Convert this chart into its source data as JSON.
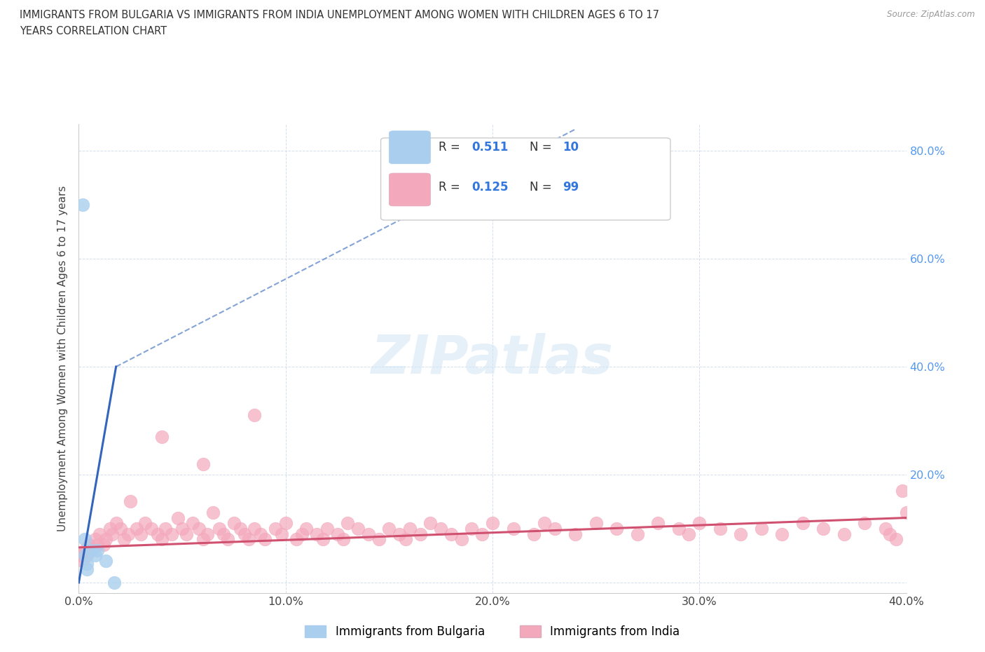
{
  "title_line1": "IMMIGRANTS FROM BULGARIA VS IMMIGRANTS FROM INDIA UNEMPLOYMENT AMONG WOMEN WITH CHILDREN AGES 6 TO 17",
  "title_line2": "YEARS CORRELATION CHART",
  "source": "Source: ZipAtlas.com",
  "ylabel": "Unemployment Among Women with Children Ages 6 to 17 years",
  "xlim": [
    0.0,
    0.4
  ],
  "ylim": [
    -0.02,
    0.85
  ],
  "x_ticks": [
    0.0,
    0.1,
    0.2,
    0.3,
    0.4
  ],
  "x_tick_labels": [
    "0.0%",
    "10.0%",
    "20.0%",
    "30.0%",
    "40.0%"
  ],
  "y_ticks": [
    0.0,
    0.2,
    0.4,
    0.6,
    0.8
  ],
  "y_tick_labels_right": [
    "",
    "20.0%",
    "40.0%",
    "60.0%",
    "80.0%"
  ],
  "watermark": "ZIPatlas",
  "legend_r_bulgaria": "0.511",
  "legend_n_bulgaria": "10",
  "legend_r_india": "0.125",
  "legend_n_india": "99",
  "color_bulgaria": "#aacfee",
  "color_india": "#f4a8bc",
  "trendline_bulgaria_color": "#3366bb",
  "trendline_india_color": "#d05070",
  "background_color": "#ffffff",
  "bulgaria_x": [
    0.002,
    0.003,
    0.003,
    0.004,
    0.004,
    0.006,
    0.008,
    0.009,
    0.013,
    0.017
  ],
  "bulgaria_y": [
    0.7,
    0.08,
    0.05,
    0.035,
    0.025,
    0.06,
    0.05,
    0.06,
    0.04,
    0.0
  ],
  "india_x": [
    0.001,
    0.002,
    0.003,
    0.004,
    0.005,
    0.006,
    0.008,
    0.009,
    0.01,
    0.012,
    0.013,
    0.015,
    0.016,
    0.018,
    0.02,
    0.022,
    0.024,
    0.025,
    0.028,
    0.03,
    0.032,
    0.035,
    0.038,
    0.04,
    0.042,
    0.045,
    0.048,
    0.05,
    0.052,
    0.055,
    0.058,
    0.06,
    0.062,
    0.065,
    0.068,
    0.07,
    0.072,
    0.075,
    0.078,
    0.08,
    0.082,
    0.085,
    0.088,
    0.09,
    0.095,
    0.098,
    0.1,
    0.105,
    0.108,
    0.11,
    0.115,
    0.118,
    0.12,
    0.125,
    0.128,
    0.13,
    0.135,
    0.14,
    0.145,
    0.15,
    0.155,
    0.158,
    0.16,
    0.165,
    0.17,
    0.175,
    0.18,
    0.185,
    0.19,
    0.195,
    0.2,
    0.21,
    0.22,
    0.225,
    0.23,
    0.24,
    0.25,
    0.26,
    0.27,
    0.28,
    0.29,
    0.295,
    0.3,
    0.31,
    0.32,
    0.33,
    0.34,
    0.35,
    0.36,
    0.37,
    0.38,
    0.39,
    0.392,
    0.395,
    0.398,
    0.4,
    0.085,
    0.06,
    0.04
  ],
  "india_y": [
    0.05,
    0.04,
    0.06,
    0.05,
    0.07,
    0.06,
    0.08,
    0.07,
    0.09,
    0.07,
    0.08,
    0.1,
    0.09,
    0.11,
    0.1,
    0.08,
    0.09,
    0.15,
    0.1,
    0.09,
    0.11,
    0.1,
    0.09,
    0.08,
    0.1,
    0.09,
    0.12,
    0.1,
    0.09,
    0.11,
    0.1,
    0.08,
    0.09,
    0.13,
    0.1,
    0.09,
    0.08,
    0.11,
    0.1,
    0.09,
    0.08,
    0.1,
    0.09,
    0.08,
    0.1,
    0.09,
    0.11,
    0.08,
    0.09,
    0.1,
    0.09,
    0.08,
    0.1,
    0.09,
    0.08,
    0.11,
    0.1,
    0.09,
    0.08,
    0.1,
    0.09,
    0.08,
    0.1,
    0.09,
    0.11,
    0.1,
    0.09,
    0.08,
    0.1,
    0.09,
    0.11,
    0.1,
    0.09,
    0.11,
    0.1,
    0.09,
    0.11,
    0.1,
    0.09,
    0.11,
    0.1,
    0.09,
    0.11,
    0.1,
    0.09,
    0.1,
    0.09,
    0.11,
    0.1,
    0.09,
    0.11,
    0.1,
    0.09,
    0.08,
    0.17,
    0.13,
    0.31,
    0.22,
    0.27
  ],
  "trendline_bulgaria_x0": 0.0,
  "trendline_bulgaria_y0": 0.0,
  "trendline_bulgaria_x1": 0.018,
  "trendline_bulgaria_y1": 0.4,
  "trendline_bulgaria_dash_x0": 0.018,
  "trendline_bulgaria_dash_y0": 0.4,
  "trendline_bulgaria_dash_x1": 0.24,
  "trendline_bulgaria_dash_y1": 0.84,
  "trendline_india_x0": 0.0,
  "trendline_india_y0": 0.065,
  "trendline_india_x1": 0.4,
  "trendline_india_y1": 0.12
}
